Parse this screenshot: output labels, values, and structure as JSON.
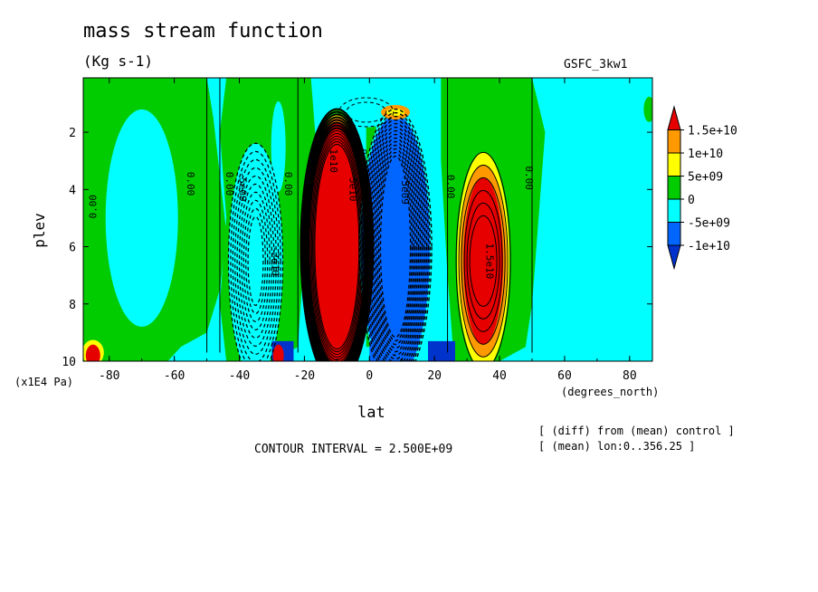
{
  "chart_data": {
    "type": "heatmap",
    "title": "mass stream function",
    "units": "(Kg s-1)",
    "model_label": "GSFC_3kw1",
    "xlabel": "lat",
    "x_units": "(degrees_north)",
    "ylabel": "plev",
    "y_units": "(x1E4 Pa)",
    "x_ticks": [
      -80,
      -60,
      -40,
      -20,
      0,
      20,
      40,
      60,
      80
    ],
    "y_ticks": [
      2,
      4,
      6,
      8,
      10
    ],
    "xlim": [
      -88,
      87
    ],
    "ylim": [
      10,
      0.1
    ],
    "contour_interval_text": "CONTOUR INTERVAL = 2.500E+09",
    "notes": [
      "[ (diff) from (mean) control ]",
      "[ (mean) lon:0..356.25 ]"
    ],
    "colorbar": {
      "labels": [
        "1.5e+10",
        "1e+10",
        "5e+09",
        "0",
        "-5e+09",
        "-1e+10"
      ],
      "colors": [
        "#e60000",
        "#ff9900",
        "#ffff00",
        "#00cc00",
        "#00ffff",
        "#0066ff",
        "#0033cc"
      ]
    },
    "contour_labels": [
      "0.00",
      "0.00",
      "0.00",
      "-5e09",
      "0.00",
      "-2e10",
      "1e10",
      "0.00",
      "5e10",
      "-5e09",
      "0.00",
      "1.5e10",
      "0.00"
    ],
    "cells": [
      {
        "name": "southern-hemisphere-negative-cell",
        "center_lat": -35,
        "center_plev": 6.5,
        "sign": "negative",
        "peak_level": "-1e+10"
      },
      {
        "name": "southern-hadley-positive-cell",
        "center_lat": -10,
        "center_plev": 6,
        "sign": "positive",
        "peak_level": "1.5e+10"
      },
      {
        "name": "northern-hadley-negative-cell",
        "center_lat": 8,
        "center_plev": 6,
        "sign": "negative",
        "peak_level": "-1e+10"
      },
      {
        "name": "northern-subtropical-positive-cell",
        "center_lat": 35,
        "center_plev": 6.5,
        "sign": "positive",
        "peak_level": "1.5e+10"
      }
    ]
  }
}
